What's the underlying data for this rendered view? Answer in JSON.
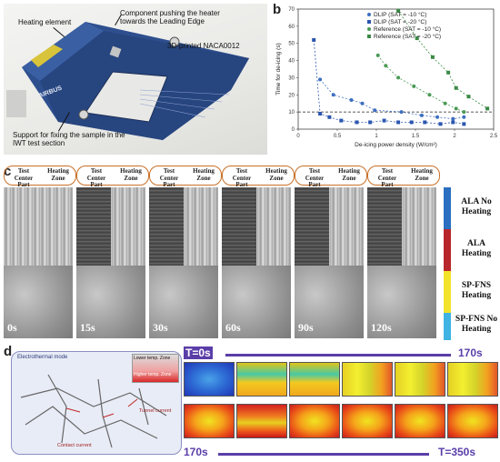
{
  "panels": {
    "a": "a",
    "b": "b",
    "c": "c",
    "d": "d"
  },
  "panel_a": {
    "callouts": {
      "heating_element": "Heating element",
      "component": "Component pushing the heater towards the Leading Edge",
      "naca": "3D-printed NACA0012",
      "support": "Support for fixing the sample in the IWT test section"
    },
    "logo": "AIRBUS"
  },
  "chart_data": {
    "type": "scatter",
    "title": "",
    "xlabel": "De-icing power density (W/cm²)",
    "ylabel": "Time for de-icing (s)",
    "xlim": [
      0,
      2.5
    ],
    "ylim": [
      0,
      70
    ],
    "xticks": [
      "0",
      "0.5",
      "1",
      "1.5",
      "2",
      "2.5"
    ],
    "yticks": [
      "0",
      "10",
      "20",
      "30",
      "40",
      "50",
      "60",
      "70"
    ],
    "hline": 10,
    "legend_position": "top-right",
    "series": [
      {
        "name": "DLIP (SAT = -10 °C)",
        "color": "#3e6fc0",
        "marker": "circle",
        "points": [
          [
            0.28,
            29
          ],
          [
            0.45,
            20
          ],
          [
            0.68,
            17
          ],
          [
            0.82,
            15
          ],
          [
            0.98,
            11
          ],
          [
            1.32,
            10
          ],
          [
            1.58,
            8
          ],
          [
            1.78,
            7
          ],
          [
            1.98,
            6
          ],
          [
            2.12,
            7
          ]
        ]
      },
      {
        "name": "DLIP (SAT = -20 °C)",
        "color": "#2b56b0",
        "marker": "square",
        "points": [
          [
            0.2,
            52
          ],
          [
            0.28,
            9
          ],
          [
            0.4,
            7
          ],
          [
            0.55,
            5
          ],
          [
            0.75,
            4
          ],
          [
            0.92,
            4
          ],
          [
            1.1,
            5
          ],
          [
            1.28,
            4
          ],
          [
            1.45,
            4
          ],
          [
            1.62,
            4
          ],
          [
            1.82,
            3
          ],
          [
            1.98,
            4
          ],
          [
            2.12,
            3
          ]
        ]
      },
      {
        "name": "Reference (SAT = -10 °C)",
        "color": "#4a9a55",
        "marker": "circle",
        "points": [
          [
            1.02,
            43
          ],
          [
            1.12,
            37
          ],
          [
            1.28,
            30
          ],
          [
            1.48,
            25
          ],
          [
            1.68,
            20
          ],
          [
            1.88,
            15
          ],
          [
            2.02,
            12
          ],
          [
            2.12,
            10
          ]
        ]
      },
      {
        "name": "Reference (SAT = -20 °C)",
        "color": "#3a8a45",
        "marker": "square",
        "points": [
          [
            1.28,
            69
          ],
          [
            1.52,
            53
          ],
          [
            1.72,
            42
          ],
          [
            1.92,
            33
          ],
          [
            2.02,
            24
          ],
          [
            2.18,
            19
          ],
          [
            2.42,
            12
          ]
        ]
      }
    ]
  },
  "panel_c": {
    "frames": [
      {
        "head_left": "Test Center Part",
        "head_right": "Heating Zone",
        "time": "0s"
      },
      {
        "head_left": "Test Center Part",
        "head_right": "Heating Zone",
        "time": "15s"
      },
      {
        "head_left": "Test Center Part",
        "head_right": "Heating Zone",
        "time": "30s"
      },
      {
        "head_left": "Test Center Part",
        "head_right": "Heating Zone",
        "time": "60s"
      },
      {
        "head_left": "Test Center Part",
        "head_right": "Heating Zone",
        "time": "90s"
      },
      {
        "head_left": "Test Center Part",
        "head_right": "Heating Zone",
        "time": "120s"
      }
    ],
    "legend": [
      {
        "label": "ALA No Heating",
        "color": "#2a6fc0"
      },
      {
        "label": "ALA Heating",
        "color": "#b8262b"
      },
      {
        "label": "SP-FNS Heating",
        "color": "#f2e32a"
      },
      {
        "label": "SP-FNS No Heating",
        "color": "#3fb3e3"
      }
    ]
  },
  "panel_d": {
    "schematic": {
      "title": "Electrothermal mode",
      "lower_temp": "Lower temp. Zone",
      "higher_temp": "Higher temp. Zone",
      "tunnel": "Tunnel current",
      "contact": "Contact current"
    },
    "labels": {
      "t0": "T=0s",
      "t170a": "170s",
      "t170b": "170s",
      "t350": "T=350s"
    },
    "colors": {
      "arrow": "#5a3ea8"
    }
  }
}
